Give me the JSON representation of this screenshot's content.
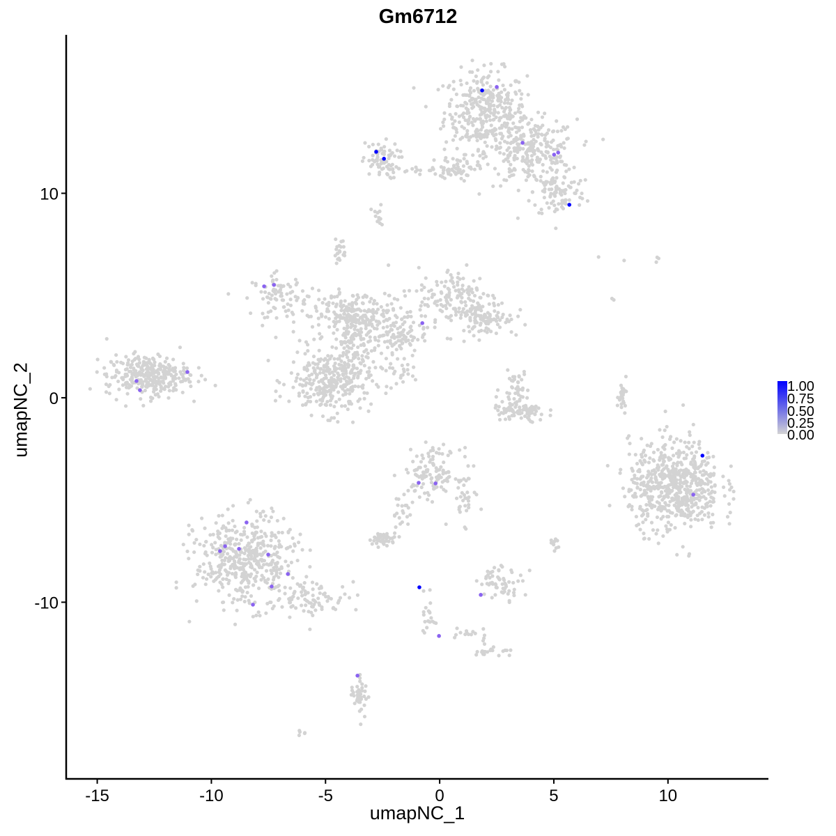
{
  "chart_data": {
    "type": "scatter",
    "title": "Gm6712",
    "xlabel": "umapNC_1",
    "ylabel": "umapNC_2",
    "xlim": [
      -16.36,
      14.4
    ],
    "ylim": [
      -18.64,
      17.75
    ],
    "xticks": [
      -15,
      -10,
      -5,
      0,
      5,
      10
    ],
    "yticks": [
      -10,
      0,
      10
    ],
    "xtick_labels": [
      "-15",
      "-10",
      "-5",
      "0",
      "5",
      "10"
    ],
    "ytick_labels": [
      "-10",
      "0",
      "10"
    ],
    "grid": false,
    "legend": {
      "placement": "right",
      "ticks": [
        "1.00",
        "0.75",
        "0.50",
        "0.25",
        "0.00"
      ],
      "low_color": "#D3D3D3",
      "high_color": "#0000FF"
    },
    "colors": {
      "background": "#D3D3D3",
      "high": "#0000FF"
    },
    "expressed_cells": [
      {
        "x": 1.86,
        "y": 15.03,
        "v": 1.0
      },
      {
        "x": 2.5,
        "y": 15.2,
        "v": 0.5
      },
      {
        "x": -2.78,
        "y": 12.03,
        "v": 1.0
      },
      {
        "x": -2.44,
        "y": 11.69,
        "v": 1.0
      },
      {
        "x": 3.63,
        "y": 12.47,
        "v": 0.5
      },
      {
        "x": 5.01,
        "y": 11.89,
        "v": 0.5
      },
      {
        "x": 5.19,
        "y": 11.99,
        "v": 0.5
      },
      {
        "x": 5.68,
        "y": 9.44,
        "v": 1.0
      },
      {
        "x": -7.69,
        "y": 5.45,
        "v": 0.5
      },
      {
        "x": -7.26,
        "y": 5.52,
        "v": 0.5
      },
      {
        "x": -0.76,
        "y": 3.65,
        "v": 0.5
      },
      {
        "x": -13.28,
        "y": 0.82,
        "v": 0.5
      },
      {
        "x": -13.13,
        "y": 0.37,
        "v": 0.5
      },
      {
        "x": -11.05,
        "y": 1.26,
        "v": 0.5
      },
      {
        "x": 11.51,
        "y": -2.83,
        "v": 1.0
      },
      {
        "x": 11.11,
        "y": -4.74,
        "v": 0.5
      },
      {
        "x": -0.92,
        "y": -4.16,
        "v": 0.5
      },
      {
        "x": -0.18,
        "y": -4.19,
        "v": 0.5
      },
      {
        "x": -8.46,
        "y": -6.1,
        "v": 0.5
      },
      {
        "x": -9.4,
        "y": -7.26,
        "v": 0.5
      },
      {
        "x": -9.62,
        "y": -7.5,
        "v": 0.5
      },
      {
        "x": -8.79,
        "y": -7.39,
        "v": 0.5
      },
      {
        "x": -7.51,
        "y": -7.67,
        "v": 0.5
      },
      {
        "x": -6.65,
        "y": -8.62,
        "v": 0.5
      },
      {
        "x": -7.36,
        "y": -9.23,
        "v": 0.5
      },
      {
        "x": -8.18,
        "y": -10.12,
        "v": 0.5
      },
      {
        "x": -0.89,
        "y": -9.27,
        "v": 1.0
      },
      {
        "x": 1.8,
        "y": -9.64,
        "v": 0.5
      },
      {
        "x": -0.03,
        "y": -11.65,
        "v": 0.5
      },
      {
        "x": -3.6,
        "y": -13.59,
        "v": 0.5
      }
    ],
    "unexpressed_regions": [
      {
        "cx": 2.0,
        "cy": 14.0,
        "sx": 0.9,
        "sy": 1.0,
        "n": 350
      },
      {
        "cx": 4.0,
        "cy": 12.0,
        "sx": 1.0,
        "sy": 0.8,
        "n": 260
      },
      {
        "cx": 5.2,
        "cy": 10.0,
        "sx": 0.6,
        "sy": 0.6,
        "n": 90
      },
      {
        "cx": 0.8,
        "cy": 11.3,
        "sx": 0.4,
        "sy": 0.3,
        "n": 40
      },
      {
        "cx": -2.6,
        "cy": 11.6,
        "sx": 0.4,
        "sy": 0.45,
        "n": 70
      },
      {
        "cx": -0.5,
        "cy": 11.15,
        "sx": 0.8,
        "sy": 0.1,
        "n": 30
      },
      {
        "cx": -2.7,
        "cy": 8.8,
        "sx": 0.15,
        "sy": 0.3,
        "n": 15
      },
      {
        "cx": -3.5,
        "cy": 4.0,
        "sx": 1.3,
        "sy": 0.6,
        "n": 220
      },
      {
        "cx": -7.0,
        "cy": 5.0,
        "sx": 0.6,
        "sy": 0.5,
        "n": 80
      },
      {
        "cx": -4.8,
        "cy": 0.8,
        "sx": 0.9,
        "sy": 0.8,
        "n": 300
      },
      {
        "cx": -4.0,
        "cy": 2.5,
        "sx": 0.3,
        "sy": 1.2,
        "n": 100
      },
      {
        "cx": -2.0,
        "cy": 3.0,
        "sx": 0.6,
        "sy": 0.5,
        "n": 90
      },
      {
        "cx": 0.8,
        "cy": 4.8,
        "sx": 0.9,
        "sy": 0.8,
        "n": 160
      },
      {
        "cx": 2.1,
        "cy": 3.9,
        "sx": 0.6,
        "sy": 0.4,
        "n": 80
      },
      {
        "cx": -4.4,
        "cy": 7.2,
        "sx": 0.15,
        "sy": 0.3,
        "n": 20
      },
      {
        "cx": -1.85,
        "cy": 1.3,
        "sx": 0.5,
        "sy": 0.4,
        "n": 25
      },
      {
        "cx": -12.8,
        "cy": 1.1,
        "sx": 0.9,
        "sy": 0.5,
        "n": 320
      },
      {
        "cx": 10.3,
        "cy": -4.3,
        "sx": 1.0,
        "sy": 1.1,
        "n": 620
      },
      {
        "cx": 3.5,
        "cy": -0.7,
        "sx": 0.6,
        "sy": 0.25,
        "n": 80
      },
      {
        "cx": 3.3,
        "cy": 0.5,
        "sx": 0.3,
        "sy": 0.4,
        "n": 40
      },
      {
        "cx": 8.0,
        "cy": 0.4,
        "sx": 0.15,
        "sy": 0.5,
        "n": 25
      },
      {
        "cx": -0.3,
        "cy": -3.7,
        "sx": 0.6,
        "sy": 0.6,
        "n": 120
      },
      {
        "cx": 1.0,
        "cy": -5.0,
        "sx": 0.3,
        "sy": 0.6,
        "n": 30
      },
      {
        "cx": -1.7,
        "cy": -5.6,
        "sx": 0.3,
        "sy": 0.5,
        "n": 20
      },
      {
        "cx": -8.5,
        "cy": -8.0,
        "sx": 1.1,
        "sy": 1.1,
        "n": 460
      },
      {
        "cx": -5.5,
        "cy": -9.8,
        "sx": 0.8,
        "sy": 0.4,
        "n": 80
      },
      {
        "cx": -2.5,
        "cy": -6.9,
        "sx": 0.3,
        "sy": 0.15,
        "n": 40
      },
      {
        "cx": 2.7,
        "cy": -9.0,
        "sx": 0.5,
        "sy": 0.4,
        "n": 60
      },
      {
        "cx": -0.5,
        "cy": -10.5,
        "sx": 0.15,
        "sy": 0.6,
        "n": 20
      },
      {
        "cx": 2.3,
        "cy": -12.4,
        "sx": 0.4,
        "sy": 0.15,
        "n": 20
      },
      {
        "cx": -3.5,
        "cy": -14.5,
        "sx": 0.2,
        "sy": 0.5,
        "n": 40
      },
      {
        "cx": -6.0,
        "cy": -16.4,
        "sx": 0.1,
        "sy": 0.1,
        "n": 5
      },
      {
        "cx": 5.0,
        "cy": -7.3,
        "sx": 0.1,
        "sy": 0.2,
        "n": 10
      },
      {
        "cx": 1.3,
        "cy": -11.5,
        "sx": 0.5,
        "sy": 0.2,
        "n": 15
      },
      {
        "cx": 7.0,
        "cy": 6.9,
        "sx": 0.05,
        "sy": 0.05,
        "n": 1
      },
      {
        "cx": 8.2,
        "cy": 6.7,
        "sx": 0.05,
        "sy": 0.05,
        "n": 1
      },
      {
        "cx": 9.5,
        "cy": 6.8,
        "sx": 0.1,
        "sy": 0.1,
        "n": 3
      },
      {
        "cx": 7.6,
        "cy": 4.8,
        "sx": 0.05,
        "sy": 0.1,
        "n": 2
      }
    ]
  }
}
